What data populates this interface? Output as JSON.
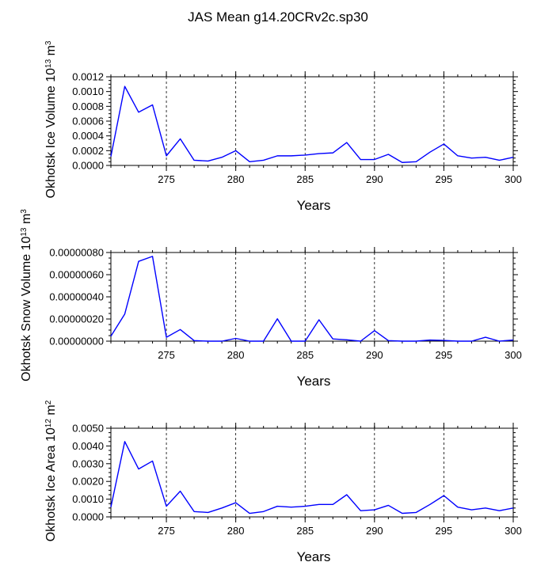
{
  "title": "JAS Mean g14.20CRv2c.sp30",
  "chart_data": [
    {
      "type": "line",
      "title": "JAS Mean g14.20CRv2c.sp30",
      "xlabel": "Years",
      "ylabel": "Okhotsk Ice Volume 10",
      "ylabel_sup": "13",
      "ylabel_unit": " m",
      "ylabel_unit_sup": "3",
      "xlim": [
        271,
        300
      ],
      "ylim": [
        0,
        0.0012
      ],
      "yticks": [
        0.0,
        0.0002,
        0.0004,
        0.0006,
        0.0008,
        0.001,
        0.0012
      ],
      "ytick_labels": [
        "0.0000",
        "0.0002",
        "0.0004",
        "0.0006",
        "0.0008",
        "0.0010",
        "0.0012"
      ],
      "xticks": [
        275,
        280,
        285,
        290,
        295,
        300
      ],
      "xtick_labels": [
        "275",
        "280",
        "285",
        "290",
        "295",
        "300"
      ],
      "grid": "vertical dashed at major x ticks",
      "color": "#0000ff",
      "x": [
        271,
        272,
        273,
        274,
        275,
        276,
        277,
        278,
        279,
        280,
        281,
        282,
        283,
        284,
        285,
        286,
        287,
        288,
        289,
        290,
        291,
        292,
        293,
        294,
        295,
        296,
        297,
        298,
        299,
        300
      ],
      "y": [
        0.00012,
        0.00107,
        0.00072,
        0.00082,
        0.00013,
        0.00036,
        7e-05,
        6e-05,
        0.00011,
        0.0002,
        5e-05,
        7e-05,
        0.00013,
        0.00013,
        0.00014,
        0.00016,
        0.00017,
        0.00031,
        8e-05,
        8e-05,
        0.00015,
        4e-05,
        5e-05,
        0.00018,
        0.00029,
        0.00013,
        0.0001,
        0.00011,
        7e-05,
        0.00011
      ]
    },
    {
      "type": "line",
      "xlabel": "Years",
      "ylabel": "Okhotsk Snow Volume 10",
      "ylabel_sup": "13",
      "ylabel_unit": " m",
      "ylabel_unit_sup": "3",
      "xlim": [
        271,
        300
      ],
      "ylim": [
        0,
        8e-07
      ],
      "yticks": [
        0,
        2e-07,
        4e-07,
        6e-07,
        8e-07
      ],
      "ytick_labels": [
        "0.00000000",
        "0.00000020",
        "0.00000040",
        "0.00000060",
        "0.00000080"
      ],
      "xticks": [
        275,
        280,
        285,
        290,
        295,
        300
      ],
      "xtick_labels": [
        "275",
        "280",
        "285",
        "290",
        "295",
        "300"
      ],
      "grid": "vertical dashed at major x ticks",
      "color": "#0000ff",
      "x": [
        271,
        272,
        273,
        274,
        275,
        276,
        277,
        278,
        279,
        280,
        281,
        282,
        283,
        284,
        285,
        286,
        287,
        288,
        289,
        290,
        291,
        292,
        293,
        294,
        295,
        296,
        297,
        298,
        299,
        300
      ],
      "y": [
        4.5e-08,
        2.45e-07,
        7.2e-07,
        7.65e-07,
        3.5e-08,
        1.05e-07,
        5e-09,
        0,
        0,
        2.5e-08,
        0,
        0,
        2.02e-07,
        0,
        0,
        1.93e-07,
        2e-08,
        1.2e-08,
        0,
        9.5e-08,
        5e-09,
        0,
        0,
        1e-08,
        7e-09,
        0,
        0,
        3.5e-08,
        0,
        1e-08
      ]
    },
    {
      "type": "line",
      "xlabel": "Years",
      "ylabel": "Okhotsk Ice Area 10",
      "ylabel_sup": "12",
      "ylabel_unit": " m",
      "ylabel_unit_sup": "2",
      "xlim": [
        271,
        300
      ],
      "ylim": [
        0,
        0.005
      ],
      "yticks": [
        0,
        0.001,
        0.002,
        0.003,
        0.004,
        0.005
      ],
      "ytick_labels": [
        "0.0000",
        "0.0010",
        "0.0020",
        "0.0030",
        "0.0040",
        "0.0050"
      ],
      "xticks": [
        275,
        280,
        285,
        290,
        295,
        300
      ],
      "xtick_labels": [
        "275",
        "280",
        "285",
        "290",
        "295",
        "300"
      ],
      "grid": "vertical dashed at major x ticks",
      "color": "#0000ff",
      "x": [
        271,
        272,
        273,
        274,
        275,
        276,
        277,
        278,
        279,
        280,
        281,
        282,
        283,
        284,
        285,
        286,
        287,
        288,
        289,
        290,
        291,
        292,
        293,
        294,
        295,
        296,
        297,
        298,
        299,
        300
      ],
      "y": [
        0.00055,
        0.00425,
        0.0027,
        0.00315,
        0.0006,
        0.00145,
        0.0003,
        0.00025,
        0.0005,
        0.0008,
        0.0002,
        0.0003,
        0.0006,
        0.00055,
        0.0006,
        0.0007,
        0.0007,
        0.00125,
        0.00035,
        0.0004,
        0.00065,
        0.0002,
        0.00025,
        0.0007,
        0.0012,
        0.00055,
        0.0004,
        0.0005,
        0.00035,
        0.0005
      ]
    }
  ]
}
